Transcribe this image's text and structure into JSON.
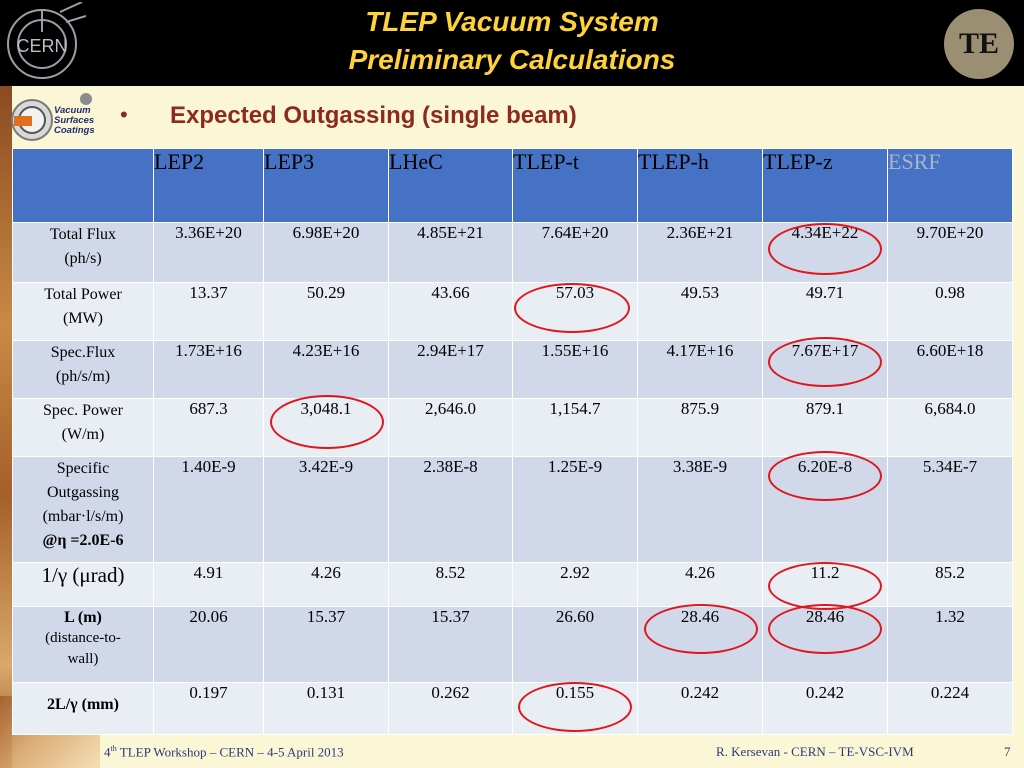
{
  "header": {
    "title_line1": "TLEP Vacuum System",
    "title_line2": "Preliminary Calculations",
    "cern_logo_text": "CERN",
    "te_logo_text": "TE"
  },
  "vsc_logo": {
    "line1": "Vacuum",
    "line2": "Surfaces",
    "line3": "Coatings"
  },
  "bullet": "•",
  "subtitle": "Expected Outgassing (single beam)",
  "table": {
    "columns": [
      "LEP2",
      "LEP3",
      "LHeC",
      "TLEP-t",
      "TLEP-h",
      "TLEP-z",
      "ESRF"
    ],
    "rows": [
      {
        "label": [
          "Total Flux",
          "(ph/s)"
        ],
        "values": [
          "3.36E+20",
          "6.98E+20",
          "4.85E+21",
          "7.64E+20",
          "2.36E+21",
          "4.34E+22",
          "9.70E+20"
        ]
      },
      {
        "label": [
          "Total Power",
          "(MW)"
        ],
        "values": [
          "13.37",
          "50.29",
          "43.66",
          "57.03",
          "49.53",
          "49.71",
          "0.98"
        ]
      },
      {
        "label": [
          "Spec.Flux",
          "(ph/s/m)"
        ],
        "values": [
          "1.73E+16",
          "4.23E+16",
          "2.94E+17",
          "1.55E+16",
          "4.17E+16",
          "7.67E+17",
          "6.60E+18"
        ]
      },
      {
        "label": [
          "Spec. Power",
          "(W/m)"
        ],
        "values": [
          "687.3",
          "3,048.1",
          "2,646.0",
          "1,154.7",
          "875.9",
          "879.1",
          "6,684.0"
        ]
      },
      {
        "label": [
          "Specific",
          "Outgassing",
          "(mbar·l/s/m)",
          "@η =2.0E-6"
        ],
        "values": [
          "1.40E-9",
          "3.42E-9",
          "2.38E-8",
          "1.25E-9",
          "3.38E-9",
          "6.20E-8",
          "5.34E-7"
        ]
      },
      {
        "label": [
          "1/γ (μrad)"
        ],
        "values": [
          "4.91",
          "4.26",
          "8.52",
          "2.92",
          "4.26",
          "11.2",
          "85.2"
        ]
      },
      {
        "label": [
          "L (m)",
          "(distance-to-",
          "wall)"
        ],
        "values": [
          "20.06",
          "15.37",
          "15.37",
          "26.60",
          "28.46",
          "28.46",
          "1.32"
        ]
      },
      {
        "label": [
          "2L/γ (mm)"
        ],
        "values": [
          "0.197",
          "0.131",
          "0.262",
          "0.155",
          "0.242",
          "0.242",
          "0.224"
        ]
      }
    ]
  },
  "footer": {
    "left_pre": "4",
    "left_sup": "th",
    "left_post": " TLEP Workshop – CERN – 4-5 April 2013",
    "right": "R. Kersevan  - CERN – TE-VSC-IVM",
    "page": "7"
  },
  "colors": {
    "title": "#ffd23c",
    "header_cell": "#4572c4",
    "circle": "#e0161c",
    "subtitle": "#8c2a20"
  }
}
